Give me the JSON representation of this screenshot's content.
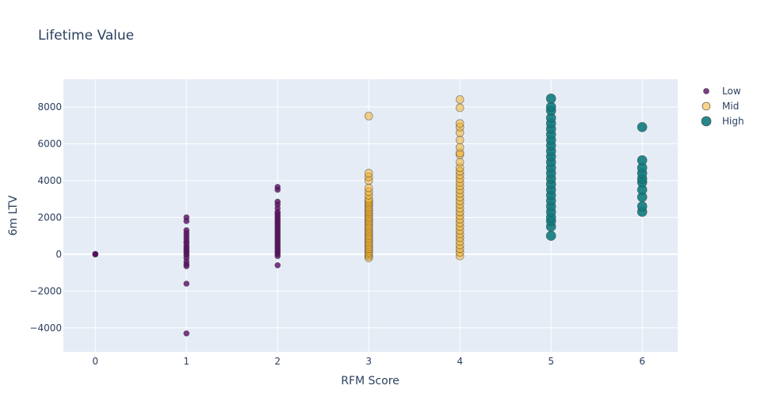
{
  "chart_data": {
    "type": "scatter",
    "title": "Lifetime Value",
    "xlabel": "RFM Score",
    "ylabel": "6m LTV",
    "xlim": [
      -0.35,
      6.39
    ],
    "ylim": [
      -5300,
      9500
    ],
    "xticks": [
      0,
      1,
      2,
      3,
      4,
      5,
      6
    ],
    "yticks": [
      -4000,
      -2000,
      0,
      2000,
      4000,
      6000,
      8000
    ],
    "ytick_labels": [
      "−4000",
      "−2000",
      "0",
      "2000",
      "4000",
      "6000",
      "8000"
    ],
    "grid": true,
    "legend_position": "top-right",
    "series": [
      {
        "name": "Low",
        "color": "#5c0a66",
        "marker_size": "small",
        "points": [
          [
            0,
            0
          ],
          [
            0,
            10
          ],
          [
            0,
            -10
          ],
          [
            0,
            5
          ],
          [
            1,
            -4300
          ],
          [
            1,
            -1600
          ],
          [
            1,
            -650
          ],
          [
            1,
            -550
          ],
          [
            1,
            -400
          ],
          [
            1,
            -200
          ],
          [
            1,
            -50
          ],
          [
            1,
            50
          ],
          [
            1,
            150
          ],
          [
            1,
            250
          ],
          [
            1,
            350
          ],
          [
            1,
            450
          ],
          [
            1,
            600
          ],
          [
            1,
            700
          ],
          [
            1,
            850
          ],
          [
            1,
            1000
          ],
          [
            1,
            1150
          ],
          [
            1,
            1300
          ],
          [
            1,
            1800
          ],
          [
            1,
            2000
          ],
          [
            2,
            -600
          ],
          [
            2,
            -100
          ],
          [
            2,
            0
          ],
          [
            2,
            100
          ],
          [
            2,
            200
          ],
          [
            2,
            300
          ],
          [
            2,
            400
          ],
          [
            2,
            500
          ],
          [
            2,
            600
          ],
          [
            2,
            700
          ],
          [
            2,
            800
          ],
          [
            2,
            900
          ],
          [
            2,
            1000
          ],
          [
            2,
            1100
          ],
          [
            2,
            1200
          ],
          [
            2,
            1300
          ],
          [
            2,
            1400
          ],
          [
            2,
            1500
          ],
          [
            2,
            1600
          ],
          [
            2,
            1700
          ],
          [
            2,
            1800
          ],
          [
            2,
            1900
          ],
          [
            2,
            2000
          ],
          [
            2,
            2100
          ],
          [
            2,
            2200
          ],
          [
            2,
            2300
          ],
          [
            2,
            2500
          ],
          [
            2,
            2700
          ],
          [
            2,
            2850
          ],
          [
            2,
            3500
          ],
          [
            2,
            3650
          ]
        ]
      },
      {
        "name": "Mid",
        "color": "#f3b02c",
        "marker_size": "medium",
        "points": [
          [
            3,
            -200
          ],
          [
            3,
            -100
          ],
          [
            3,
            0
          ],
          [
            3,
            100
          ],
          [
            3,
            200
          ],
          [
            3,
            300
          ],
          [
            3,
            400
          ],
          [
            3,
            500
          ],
          [
            3,
            600
          ],
          [
            3,
            700
          ],
          [
            3,
            800
          ],
          [
            3,
            900
          ],
          [
            3,
            1000
          ],
          [
            3,
            1100
          ],
          [
            3,
            1200
          ],
          [
            3,
            1300
          ],
          [
            3,
            1400
          ],
          [
            3,
            1500
          ],
          [
            3,
            1600
          ],
          [
            3,
            1700
          ],
          [
            3,
            1800
          ],
          [
            3,
            1900
          ],
          [
            3,
            2000
          ],
          [
            3,
            2100
          ],
          [
            3,
            2200
          ],
          [
            3,
            2300
          ],
          [
            3,
            2400
          ],
          [
            3,
            2500
          ],
          [
            3,
            2600
          ],
          [
            3,
            2700
          ],
          [
            3,
            2800
          ],
          [
            3,
            2900
          ],
          [
            3,
            3000
          ],
          [
            3,
            3200
          ],
          [
            3,
            3400
          ],
          [
            3,
            3600
          ],
          [
            3,
            4000
          ],
          [
            3,
            4200
          ],
          [
            3,
            4400
          ],
          [
            3,
            7500
          ],
          [
            4,
            -100
          ],
          [
            4,
            100
          ],
          [
            4,
            300
          ],
          [
            4,
            500
          ],
          [
            4,
            700
          ],
          [
            4,
            900
          ],
          [
            4,
            1100
          ],
          [
            4,
            1300
          ],
          [
            4,
            1500
          ],
          [
            4,
            1700
          ],
          [
            4,
            1900
          ],
          [
            4,
            2100
          ],
          [
            4,
            2300
          ],
          [
            4,
            2500
          ],
          [
            4,
            2700
          ],
          [
            4,
            2900
          ],
          [
            4,
            3100
          ],
          [
            4,
            3300
          ],
          [
            4,
            3500
          ],
          [
            4,
            3700
          ],
          [
            4,
            3900
          ],
          [
            4,
            4100
          ],
          [
            4,
            4300
          ],
          [
            4,
            4500
          ],
          [
            4,
            4700
          ],
          [
            4,
            5000
          ],
          [
            4,
            5400
          ],
          [
            4,
            5500
          ],
          [
            4,
            5800
          ],
          [
            4,
            6200
          ],
          [
            4,
            6600
          ],
          [
            4,
            6900
          ],
          [
            4,
            7100
          ],
          [
            4,
            7950
          ],
          [
            4,
            8400
          ]
        ]
      },
      {
        "name": "High",
        "color": "#0f7b7e",
        "marker_size": "large",
        "points": [
          [
            5,
            1000
          ],
          [
            5,
            1500
          ],
          [
            5,
            1800
          ],
          [
            5,
            2000
          ],
          [
            5,
            2300
          ],
          [
            5,
            2600
          ],
          [
            5,
            2900
          ],
          [
            5,
            3200
          ],
          [
            5,
            3500
          ],
          [
            5,
            3800
          ],
          [
            5,
            4100
          ],
          [
            5,
            4400
          ],
          [
            5,
            4700
          ],
          [
            5,
            5000
          ],
          [
            5,
            5300
          ],
          [
            5,
            5600
          ],
          [
            5,
            5900
          ],
          [
            5,
            6200
          ],
          [
            5,
            6500
          ],
          [
            5,
            6800
          ],
          [
            5,
            7100
          ],
          [
            5,
            7400
          ],
          [
            5,
            7800
          ],
          [
            5,
            8000
          ],
          [
            5,
            8450
          ],
          [
            6,
            2300
          ],
          [
            6,
            2600
          ],
          [
            6,
            3100
          ],
          [
            6,
            3500
          ],
          [
            6,
            3900
          ],
          [
            6,
            4100
          ],
          [
            6,
            4400
          ],
          [
            6,
            4700
          ],
          [
            6,
            5100
          ],
          [
            6,
            6900
          ]
        ]
      }
    ]
  }
}
